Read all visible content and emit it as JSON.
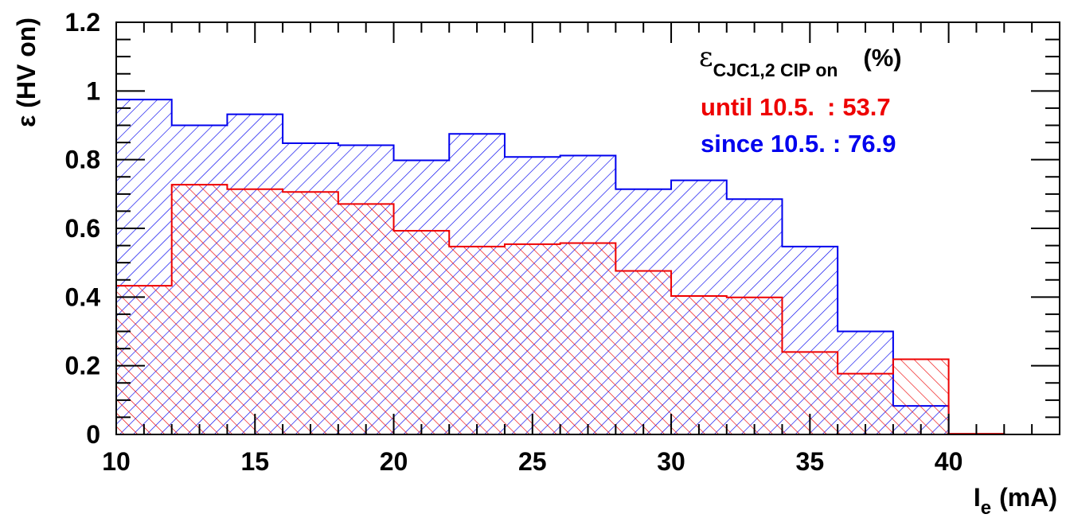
{
  "chart_data": {
    "type": "histogram",
    "xlabel": "I",
    "xlabel_sub": "e",
    "xlabel_unit": "(mA)",
    "ylabel": "ε (HV on)",
    "xlim": [
      10,
      44
    ],
    "ylim": [
      0,
      1.2
    ],
    "x_ticks": [
      10,
      15,
      20,
      25,
      30,
      35,
      40
    ],
    "x_tick_labels": [
      "10",
      "15",
      "20",
      "25",
      "30",
      "35",
      "40"
    ],
    "y_ticks": [
      0,
      0.2,
      0.4,
      0.6,
      0.8,
      1,
      1.2
    ],
    "y_tick_labels": [
      "0",
      "0.2",
      "0.4",
      "0.6",
      "0.8",
      "1",
      "1.2"
    ],
    "bin_edges": [
      10,
      12,
      14,
      16,
      18,
      20,
      22,
      24,
      26,
      28,
      30,
      32,
      34,
      36,
      38,
      40,
      42,
      44
    ],
    "series": [
      {
        "name": "since 10.5.",
        "color": "#0000ee",
        "hatch": "single-diagonal",
        "values": [
          0.975,
          0.9,
          0.932,
          0.848,
          0.842,
          0.798,
          0.875,
          0.808,
          0.812,
          0.714,
          0.74,
          0.685,
          0.547,
          0.3,
          0.083,
          0.0,
          0.0
        ]
      },
      {
        "name": "until 10.5.",
        "color": "#ee0000",
        "hatch": "single-diagonal",
        "values": [
          0.433,
          0.727,
          0.714,
          0.706,
          0.671,
          0.593,
          0.547,
          0.554,
          0.557,
          0.476,
          0.403,
          0.399,
          0.24,
          0.177,
          0.219,
          0.002,
          0.0
        ]
      }
    ],
    "legend": {
      "title_symbol": "ε",
      "title_sub": "CJC1,2 CIP on",
      "title_unit": "(%)",
      "entries": [
        {
          "label": "until 10.5.",
          "sep": ":",
          "value": "53.7",
          "color": "#ee0000"
        },
        {
          "label": "since 10.5.",
          "sep": ":",
          "value": "76.9",
          "color": "#0000ee"
        }
      ],
      "placement": "top-right"
    },
    "grid": false
  }
}
